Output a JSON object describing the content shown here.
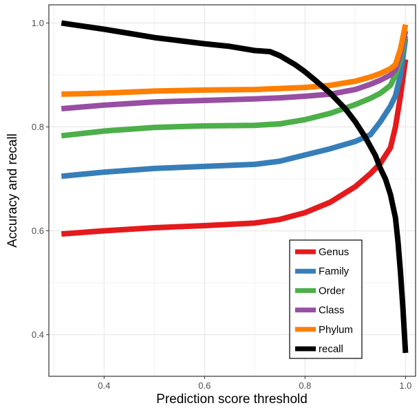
{
  "chart_data": {
    "type": "line",
    "title": "",
    "xlabel": "Prediction score threshold",
    "ylabel": "Accuracy and recall",
    "xlim": [
      0.29,
      1.02
    ],
    "ylim": [
      0.32,
      1.035
    ],
    "xticks": [
      0.4,
      0.6,
      0.8,
      1.0
    ],
    "xtick_labels": [
      "0.4",
      "0.6",
      "0.8",
      "1.0"
    ],
    "yticks": [
      0.4,
      0.6,
      0.8,
      1.0
    ],
    "ytick_labels": [
      "0.4",
      "0.6",
      "0.8",
      "1.0"
    ],
    "grid": true,
    "legend_position": "bottom-right",
    "series": [
      {
        "name": "Genus",
        "color": "#e41a1c",
        "x": [
          0.315,
          0.4,
          0.5,
          0.6,
          0.7,
          0.75,
          0.8,
          0.85,
          0.9,
          0.93,
          0.95,
          0.97,
          0.98,
          0.99,
          1.0
        ],
        "y": [
          0.594,
          0.6,
          0.606,
          0.61,
          0.615,
          0.622,
          0.635,
          0.655,
          0.685,
          0.71,
          0.73,
          0.76,
          0.8,
          0.86,
          0.93
        ]
      },
      {
        "name": "Family",
        "color": "#377eb8",
        "x": [
          0.315,
          0.4,
          0.5,
          0.6,
          0.7,
          0.75,
          0.8,
          0.85,
          0.9,
          0.93,
          0.95,
          0.97,
          0.98,
          0.99,
          1.0
        ],
        "y": [
          0.705,
          0.713,
          0.72,
          0.724,
          0.728,
          0.734,
          0.746,
          0.758,
          0.772,
          0.785,
          0.81,
          0.84,
          0.86,
          0.9,
          0.97
        ]
      },
      {
        "name": "Order",
        "color": "#4daf4a",
        "x": [
          0.315,
          0.4,
          0.5,
          0.6,
          0.7,
          0.75,
          0.8,
          0.85,
          0.9,
          0.93,
          0.95,
          0.97,
          0.98,
          0.99,
          1.0
        ],
        "y": [
          0.783,
          0.792,
          0.799,
          0.802,
          0.803,
          0.806,
          0.814,
          0.826,
          0.843,
          0.855,
          0.865,
          0.88,
          0.9,
          0.93,
          0.975
        ]
      },
      {
        "name": "Class",
        "color": "#984ea3",
        "x": [
          0.315,
          0.4,
          0.5,
          0.6,
          0.7,
          0.75,
          0.8,
          0.85,
          0.9,
          0.93,
          0.95,
          0.97,
          0.98,
          0.99,
          1.0
        ],
        "y": [
          0.835,
          0.842,
          0.848,
          0.851,
          0.854,
          0.856,
          0.859,
          0.863,
          0.872,
          0.882,
          0.89,
          0.9,
          0.91,
          0.94,
          0.985
        ]
      },
      {
        "name": "Phylum",
        "color": "#ff7f00",
        "x": [
          0.315,
          0.4,
          0.5,
          0.6,
          0.7,
          0.75,
          0.8,
          0.85,
          0.9,
          0.93,
          0.95,
          0.97,
          0.98,
          0.99,
          1.0
        ],
        "y": [
          0.863,
          0.865,
          0.869,
          0.871,
          0.872,
          0.874,
          0.876,
          0.88,
          0.888,
          0.896,
          0.903,
          0.912,
          0.92,
          0.95,
          0.997
        ]
      },
      {
        "name": "recall",
        "color": "#000000",
        "x": [
          0.315,
          0.35,
          0.4,
          0.45,
          0.5,
          0.55,
          0.6,
          0.65,
          0.7,
          0.73,
          0.75,
          0.78,
          0.8,
          0.82,
          0.85,
          0.88,
          0.9,
          0.92,
          0.94,
          0.95,
          0.96,
          0.97,
          0.98,
          0.985,
          0.99,
          0.995,
          1.0
        ],
        "y": [
          1.0,
          0.995,
          0.988,
          0.98,
          0.972,
          0.966,
          0.96,
          0.955,
          0.947,
          0.945,
          0.937,
          0.92,
          0.906,
          0.89,
          0.865,
          0.835,
          0.81,
          0.78,
          0.745,
          0.72,
          0.7,
          0.67,
          0.625,
          0.58,
          0.52,
          0.45,
          0.365
        ]
      }
    ]
  }
}
